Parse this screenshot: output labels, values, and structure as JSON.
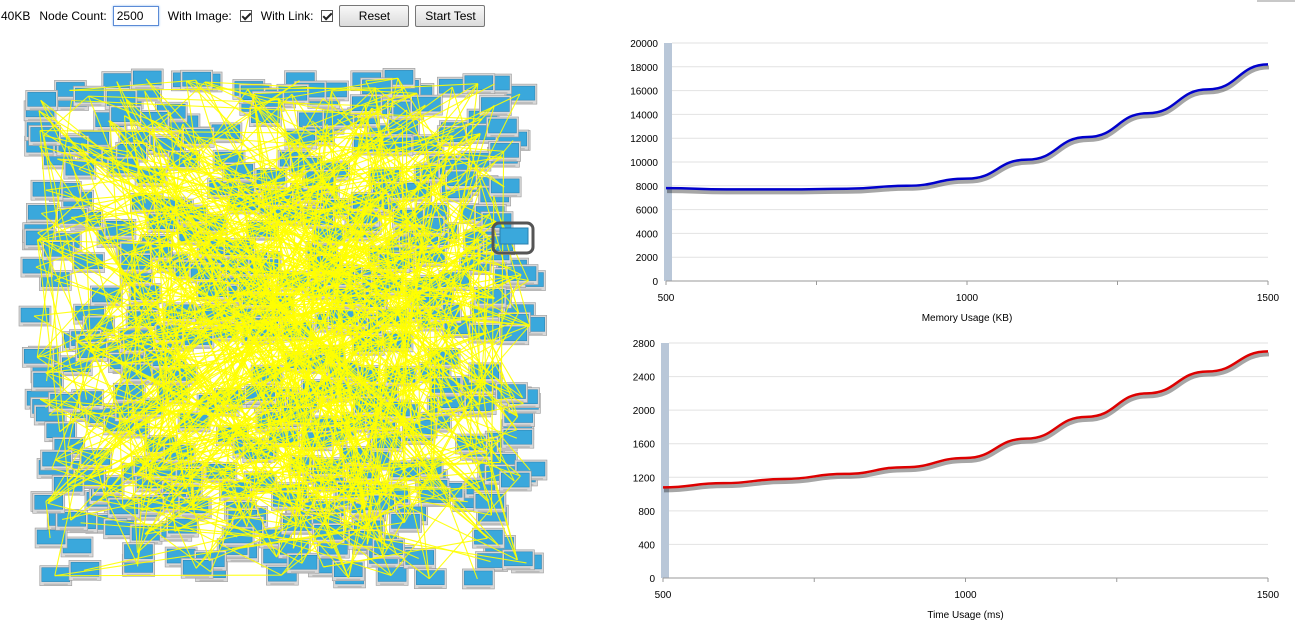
{
  "toolbar": {
    "memory_text": "40KB",
    "node_count_label": "Node Count:",
    "node_count_value": "2500",
    "with_image_label": "With Image:",
    "with_image_checked": true,
    "with_link_label": "With Link:",
    "with_link_checked": true,
    "reset_label": "Reset",
    "start_label": "Start Test"
  },
  "colors": {
    "node_fill": "#3aa8dc",
    "link": "#ffff00",
    "memory_line": "#0000cc",
    "time_line": "#dd0000"
  },
  "chart_data": [
    {
      "type": "line",
      "title": "",
      "xlabel": "Memory Usage (KB)",
      "ylabel": "",
      "x_ticks": [
        500,
        1000,
        1500
      ],
      "y_ticks": [
        0,
        2000,
        4000,
        6000,
        8000,
        10000,
        12000,
        14000,
        16000,
        18000,
        20000
      ],
      "xlim": [
        500,
        1500
      ],
      "ylim": [
        0,
        20000
      ],
      "grid": true,
      "series": [
        {
          "x": [
            500,
            600,
            700,
            800,
            900,
            1000,
            1100,
            1200,
            1300,
            1400,
            1500
          ],
          "values": [
            7800,
            7700,
            7700,
            7750,
            8000,
            8600,
            10200,
            12100,
            14100,
            16100,
            18200
          ]
        }
      ]
    },
    {
      "type": "line",
      "title": "",
      "xlabel": "Time Usage (ms)",
      "ylabel": "",
      "x_ticks": [
        500,
        1000,
        1500
      ],
      "y_ticks": [
        0,
        400,
        800,
        1200,
        1600,
        2000,
        2400,
        2800
      ],
      "xlim": [
        500,
        1500
      ],
      "ylim": [
        0,
        2800
      ],
      "grid": true,
      "series": [
        {
          "x": [
            500,
            600,
            700,
            800,
            900,
            1000,
            1100,
            1200,
            1300,
            1400,
            1500
          ],
          "values": [
            1080,
            1130,
            1180,
            1240,
            1320,
            1430,
            1660,
            1920,
            2200,
            2460,
            2700
          ]
        }
      ]
    }
  ]
}
